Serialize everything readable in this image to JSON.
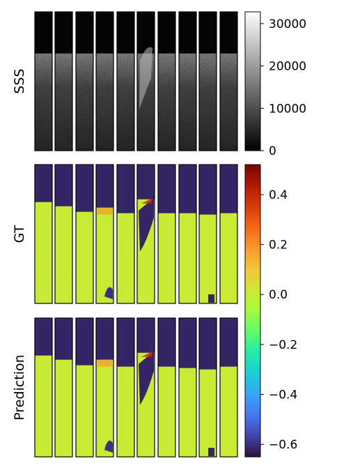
{
  "chart_data": {
    "type": "heatmap",
    "rows": [
      {
        "label": "SSS",
        "colormap": "gray"
      },
      {
        "label": "GT",
        "colormap": "turbo"
      },
      {
        "label": "Prediction",
        "colormap": "turbo"
      }
    ],
    "tiles_per_row": 10,
    "colorbars": [
      {
        "colormap": "gray",
        "range": [
          0,
          32768
        ],
        "ticks": [
          0,
          10000,
          20000,
          30000
        ],
        "tick_labels": [
          "0",
          "10000",
          "20000",
          "30000"
        ]
      },
      {
        "colormap": "turbo",
        "range": [
          -0.65,
          0.52
        ],
        "ticks": [
          -0.6,
          -0.4,
          -0.2,
          0.0,
          0.2,
          0.4
        ],
        "tick_labels": [
          "−0.6",
          "−0.4",
          "−0.2",
          "0.0",
          "0.2",
          "0.4"
        ]
      }
    ],
    "gt_seafloor_depth_fraction": [
      0.27,
      0.3,
      0.34,
      0.31,
      0.35,
      0.25,
      0.35,
      0.35,
      0.36,
      0.35
    ],
    "prediction_seafloor_depth_fraction": [
      0.27,
      0.3,
      0.34,
      0.3,
      0.35,
      0.25,
      0.35,
      0.36,
      0.37,
      0.35
    ],
    "water_column_value": -0.62,
    "seafloor_base_value": 0.0
  }
}
